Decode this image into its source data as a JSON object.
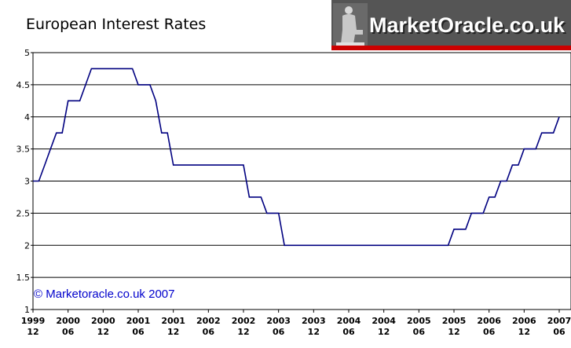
{
  "banner": {
    "brand_text": "MarketOracle.co.uk",
    "bg_color": "#555555",
    "stripe_color": "#cc0000",
    "icon": "statue-icon"
  },
  "chart_data": {
    "type": "line",
    "title": "European Interest Rates",
    "xlabel": "",
    "ylabel": "",
    "ylim": [
      1,
      5
    ],
    "yticks": [
      "1",
      "1.5",
      "2",
      "2.5",
      "3",
      "3.5",
      "4",
      "4.5",
      "5"
    ],
    "xticks": [
      {
        "year": "1999",
        "month": "12"
      },
      {
        "year": "2000",
        "month": "06"
      },
      {
        "year": "2000",
        "month": "12"
      },
      {
        "year": "2001",
        "month": "06"
      },
      {
        "year": "2001",
        "month": "12"
      },
      {
        "year": "2002",
        "month": "06"
      },
      {
        "year": "2002",
        "month": "12"
      },
      {
        "year": "2003",
        "month": "06"
      },
      {
        "year": "2003",
        "month": "12"
      },
      {
        "year": "2004",
        "month": "06"
      },
      {
        "year": "2004",
        "month": "12"
      },
      {
        "year": "2005",
        "month": "06"
      },
      {
        "year": "2005",
        "month": "12"
      },
      {
        "year": "2006",
        "month": "06"
      },
      {
        "year": "2006",
        "month": "12"
      },
      {
        "year": "2007",
        "month": "06"
      }
    ],
    "grid": true,
    "line_color": "#000080",
    "annotation": "© Marketoracle.co.uk 2007",
    "annotation_color": "#0000cc",
    "series": [
      {
        "x": [
          "1999-12",
          "2000-01",
          "2000-02",
          "2000-03",
          "2000-04",
          "2000-05",
          "2000-06",
          "2000-07",
          "2000-08",
          "2000-09",
          "2000-10",
          "2000-11",
          "2000-12",
          "2001-01",
          "2001-02",
          "2001-03",
          "2001-04",
          "2001-05",
          "2001-06",
          "2001-07",
          "2001-08",
          "2001-09",
          "2001-10",
          "2001-11",
          "2001-12",
          "2002-01",
          "2002-02",
          "2002-03",
          "2002-04",
          "2002-05",
          "2002-06",
          "2002-07",
          "2002-08",
          "2002-09",
          "2002-10",
          "2002-11",
          "2002-12",
          "2003-01",
          "2003-02",
          "2003-03",
          "2003-04",
          "2003-05",
          "2003-06",
          "2003-07",
          "2005-11",
          "2005-12",
          "2006-01",
          "2006-02",
          "2006-03",
          "2006-04",
          "2006-05",
          "2006-06",
          "2006-07",
          "2006-08",
          "2006-09",
          "2006-10",
          "2006-11",
          "2006-12",
          "2007-01",
          "2007-02",
          "2007-03",
          "2007-04",
          "2007-05",
          "2007-06"
        ],
        "y": [
          3.0,
          3.0,
          3.25,
          3.5,
          3.75,
          3.75,
          4.25,
          4.25,
          4.25,
          4.5,
          4.75,
          4.75,
          4.75,
          4.75,
          4.75,
          4.75,
          4.75,
          4.75,
          4.5,
          4.5,
          4.5,
          4.25,
          3.75,
          3.75,
          3.25,
          3.25,
          3.25,
          3.25,
          3.25,
          3.25,
          3.25,
          3.25,
          3.25,
          3.25,
          3.25,
          3.25,
          3.25,
          2.75,
          2.75,
          2.75,
          2.5,
          2.5,
          2.5,
          2.0,
          2.0,
          2.25,
          2.25,
          2.25,
          2.5,
          2.5,
          2.5,
          2.75,
          2.75,
          3.0,
          3.0,
          3.25,
          3.25,
          3.5,
          3.5,
          3.5,
          3.75,
          3.75,
          3.75,
          4.0
        ]
      }
    ]
  }
}
